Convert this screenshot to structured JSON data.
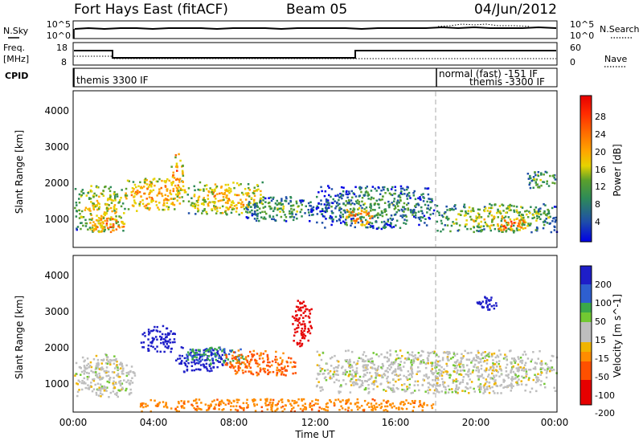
{
  "header": {
    "station": "Fort Hays East (fitACF)",
    "beam": "Beam 05",
    "date": "04/Jun/2012"
  },
  "strips": {
    "nsky_label": "N.Sky",
    "nsearch_label": "N.Search",
    "noise_ticks": [
      "10^5",
      "10^0"
    ],
    "noise_ticks_right": [
      "10^5",
      "10^0"
    ],
    "freq_label": "Freq.",
    "freq_unit": "[MHz]",
    "freq_ticks": [
      "18",
      "8"
    ],
    "nave_label": "Nave",
    "nave_ticks": [
      "60",
      "0"
    ],
    "cpid_label": "CPID",
    "cpid_segments": [
      {
        "label": "themis 3300 IF",
        "start_hour": 0,
        "end_hour": 18
      },
      {
        "label": "normal (fast) -151 IF",
        "start_hour": 18,
        "end_hour": 24
      },
      {
        "label": "themis -3300 IF",
        "start_hour": 18,
        "end_hour": 24
      }
    ]
  },
  "axes": {
    "ylabel": "Slant Range [km]",
    "xlabel": "Time UT",
    "x_ticks": [
      "00:00",
      "04:00",
      "08:00",
      "12:00",
      "16:00",
      "20:00",
      "00:00"
    ],
    "y_ticks": [
      "1000",
      "2000",
      "3000",
      "4000"
    ]
  },
  "colorbars": {
    "power_label": "Power [dB]",
    "power_ticks": [
      "28",
      "24",
      "20",
      "16",
      "12",
      "8",
      "4"
    ],
    "velocity_label": "Velocity [m s^-1]",
    "velocity_ticks": [
      "200",
      "100",
      "50",
      "15",
      "-15",
      "-50",
      "-100",
      "-200"
    ]
  },
  "colors": {
    "power_scale": [
      "#0000e6",
      "#1f4fa8",
      "#2e8b57",
      "#5aa02c",
      "#e6d200",
      "#ffa500",
      "#ff6a00",
      "#ff2a00",
      "#e60000"
    ],
    "velocity_scale": [
      "#1e1ec8",
      "#2e5fd0",
      "#3aa84a",
      "#72c832",
      "#bebebe",
      "#f0b400",
      "#ff8c00",
      "#ff5000",
      "#e60000"
    ]
  },
  "chart_data": [
    {
      "type": "line",
      "title": "Fort Hays East (fitACF)",
      "series": [
        {
          "name": "N.Sky",
          "x": [
            0,
            0.2,
            4,
            8,
            12,
            16,
            20,
            24
          ],
          "y": [
            70000,
            40000,
            45000,
            50000,
            48000,
            50000,
            55000,
            52000
          ]
        },
        {
          "name": "N.Search",
          "x": [
            18.5,
            19,
            20,
            21,
            22
          ],
          "y": [
            80000,
            90000,
            95000,
            85000,
            70000
          ]
        }
      ],
      "yscale": "log",
      "ylim": [
        1,
        100000
      ],
      "xlim": [
        0,
        24
      ]
    },
    {
      "type": "line",
      "series": [
        {
          "name": "Freq.",
          "x": [
            0,
            2,
            2,
            14,
            14,
            24
          ],
          "y": [
            17,
            17,
            11,
            11,
            16,
            16
          ]
        },
        {
          "name": "Nave",
          "x": [
            0,
            2,
            2,
            14,
            14,
            24
          ],
          "y": [
            25,
            25,
            20,
            20,
            20,
            20
          ]
        }
      ],
      "ylim_left": [
        8,
        18
      ],
      "ylim_right": [
        0,
        60
      ],
      "xlim": [
        0,
        24
      ]
    },
    {
      "type": "heatmap",
      "quantity": "Power [dB]",
      "xlabel": "Time UT",
      "ylabel": "Slant Range [km]",
      "xlim": [
        0,
        24
      ],
      "ylim": [
        180,
        4500
      ],
      "clim": [
        0,
        30
      ],
      "features": [
        {
          "t0": 0.0,
          "t1": 2.5,
          "r0": 600,
          "r1": 1900,
          "p": 16
        },
        {
          "t0": 0.8,
          "t1": 2.5,
          "r0": 600,
          "r1": 1000,
          "p": 24
        },
        {
          "t0": 2.5,
          "t1": 5.5,
          "r0": 1200,
          "r1": 2100,
          "p": 20
        },
        {
          "t0": 4.8,
          "t1": 5.4,
          "r0": 1800,
          "r1": 2800,
          "p": 22
        },
        {
          "t0": 5.5,
          "t1": 9.5,
          "r0": 1100,
          "r1": 2000,
          "p": 18
        },
        {
          "t0": 8.5,
          "t1": 12.0,
          "r0": 900,
          "r1": 1600,
          "p": 10
        },
        {
          "t0": 12.0,
          "t1": 18.0,
          "r0": 700,
          "r1": 1900,
          "p": 9
        },
        {
          "t0": 13.5,
          "t1": 15.0,
          "r0": 800,
          "r1": 1300,
          "p": 22
        },
        {
          "t0": 18.0,
          "t1": 24.0,
          "r0": 600,
          "r1": 1400,
          "p": 14
        },
        {
          "t0": 21.0,
          "t1": 22.5,
          "r0": 600,
          "r1": 1000,
          "p": 24
        },
        {
          "t0": 22.5,
          "t1": 24.0,
          "r0": 1800,
          "r1": 2300,
          "p": 12
        }
      ]
    },
    {
      "type": "heatmap",
      "quantity": "Velocity [m s^-1]",
      "xlabel": "Time UT",
      "ylabel": "Slant Range [km]",
      "xlim": [
        0,
        24
      ],
      "ylim": [
        180,
        4500
      ],
      "clim": [
        -200,
        200
      ],
      "features": [
        {
          "t0": 0.0,
          "t1": 3.0,
          "r0": 600,
          "r1": 1800,
          "v": 0
        },
        {
          "t0": 3.3,
          "t1": 5.0,
          "r0": 1800,
          "r1": 2600,
          "v": 200
        },
        {
          "t0": 5.0,
          "t1": 7.5,
          "r0": 1300,
          "r1": 2000,
          "v": 180
        },
        {
          "t0": 5.5,
          "t1": 8.5,
          "r0": 1500,
          "r1": 2000,
          "v": 70
        },
        {
          "t0": 7.5,
          "t1": 11.0,
          "r0": 1200,
          "r1": 1900,
          "v": -80
        },
        {
          "t0": 10.8,
          "t1": 11.8,
          "r0": 2000,
          "r1": 3300,
          "v": -200
        },
        {
          "t0": 12.0,
          "t1": 24.0,
          "r0": 700,
          "r1": 1900,
          "v": 0
        },
        {
          "t0": 3.0,
          "t1": 18.0,
          "r0": 200,
          "r1": 550,
          "v": -60
        },
        {
          "t0": 20.0,
          "t1": 21.0,
          "r0": 3000,
          "r1": 3400,
          "v": 200
        }
      ]
    }
  ]
}
